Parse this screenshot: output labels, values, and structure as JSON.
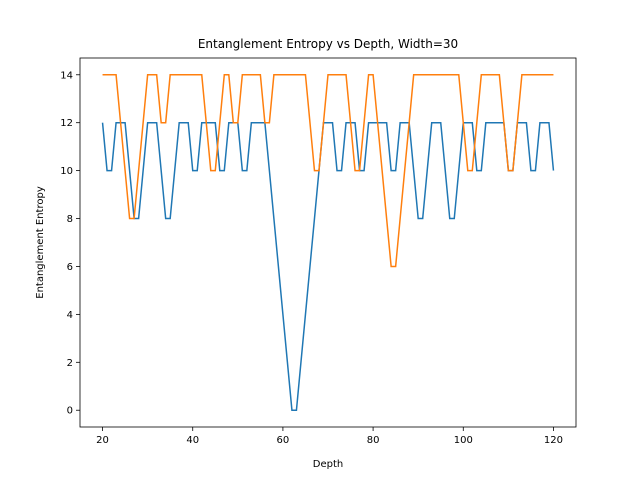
{
  "chart_data": {
    "type": "line",
    "title": "Entanglement Entropy vs Depth, Width=30",
    "x_label": "Depth",
    "y_label": "Entanglement Entropy",
    "x": [
      20,
      21,
      22,
      23,
      24,
      25,
      26,
      27,
      28,
      29,
      30,
      31,
      32,
      33,
      34,
      35,
      36,
      37,
      38,
      39,
      40,
      41,
      42,
      43,
      44,
      45,
      46,
      47,
      48,
      49,
      50,
      51,
      52,
      53,
      54,
      55,
      56,
      57,
      58,
      59,
      60,
      61,
      62,
      63,
      64,
      65,
      66,
      67,
      68,
      69,
      70,
      71,
      72,
      73,
      74,
      75,
      76,
      77,
      78,
      79,
      80,
      81,
      82,
      83,
      84,
      85,
      86,
      87,
      88,
      89,
      90,
      91,
      92,
      93,
      94,
      95,
      96,
      97,
      98,
      99,
      100,
      101,
      102,
      103,
      104,
      105,
      106,
      107,
      108,
      109,
      110,
      111,
      112,
      113,
      114,
      115,
      116,
      117,
      118,
      119,
      120
    ],
    "series": [
      {
        "color": "#1f77b4",
        "values": [
          12,
          10,
          10,
          12,
          12,
          12,
          10,
          8,
          8,
          10,
          12,
          12,
          12,
          10,
          8,
          8,
          10,
          12,
          12,
          12,
          10,
          10,
          12,
          12,
          12,
          12,
          10,
          10,
          12,
          12,
          12,
          10,
          10,
          12,
          12,
          12,
          12,
          10,
          8,
          6,
          4,
          2,
          0,
          0,
          2,
          4,
          6,
          8,
          10,
          12,
          12,
          12,
          10,
          10,
          12,
          12,
          12,
          10,
          10,
          12,
          12,
          12,
          12,
          12,
          10,
          10,
          12,
          12,
          12,
          10,
          8,
          8,
          10,
          12,
          12,
          12,
          10,
          8,
          8,
          10,
          12,
          12,
          12,
          10,
          10,
          12,
          12,
          12,
          12,
          12,
          10,
          10,
          12,
          12,
          12,
          10,
          10,
          12,
          12,
          12,
          10
        ]
      },
      {
        "color": "#ff7f0e",
        "values": [
          14,
          14,
          14,
          14,
          12,
          10,
          8,
          8,
          10,
          12,
          14,
          14,
          14,
          12,
          12,
          14,
          14,
          14,
          14,
          14,
          14,
          14,
          14,
          12,
          10,
          10,
          12,
          14,
          14,
          12,
          12,
          14,
          14,
          14,
          14,
          14,
          12,
          12,
          14,
          14,
          14,
          14,
          14,
          14,
          14,
          14,
          12,
          10,
          10,
          12,
          14,
          14,
          14,
          14,
          14,
          12,
          10,
          10,
          12,
          14,
          14,
          12,
          10,
          8,
          6,
          6,
          8,
          10,
          12,
          14,
          14,
          14,
          14,
          14,
          14,
          14,
          14,
          14,
          14,
          14,
          12,
          10,
          10,
          12,
          14,
          14,
          14,
          14,
          14,
          12,
          10,
          10,
          12,
          14,
          14,
          14,
          14,
          14,
          14,
          14,
          14
        ]
      }
    ],
    "xlim": [
      15,
      125
    ],
    "ylim": [
      -0.7,
      14.7
    ],
    "xticks": [
      20,
      40,
      60,
      80,
      100,
      120
    ],
    "yticks": [
      0,
      2,
      4,
      6,
      8,
      10,
      12,
      14
    ]
  }
}
